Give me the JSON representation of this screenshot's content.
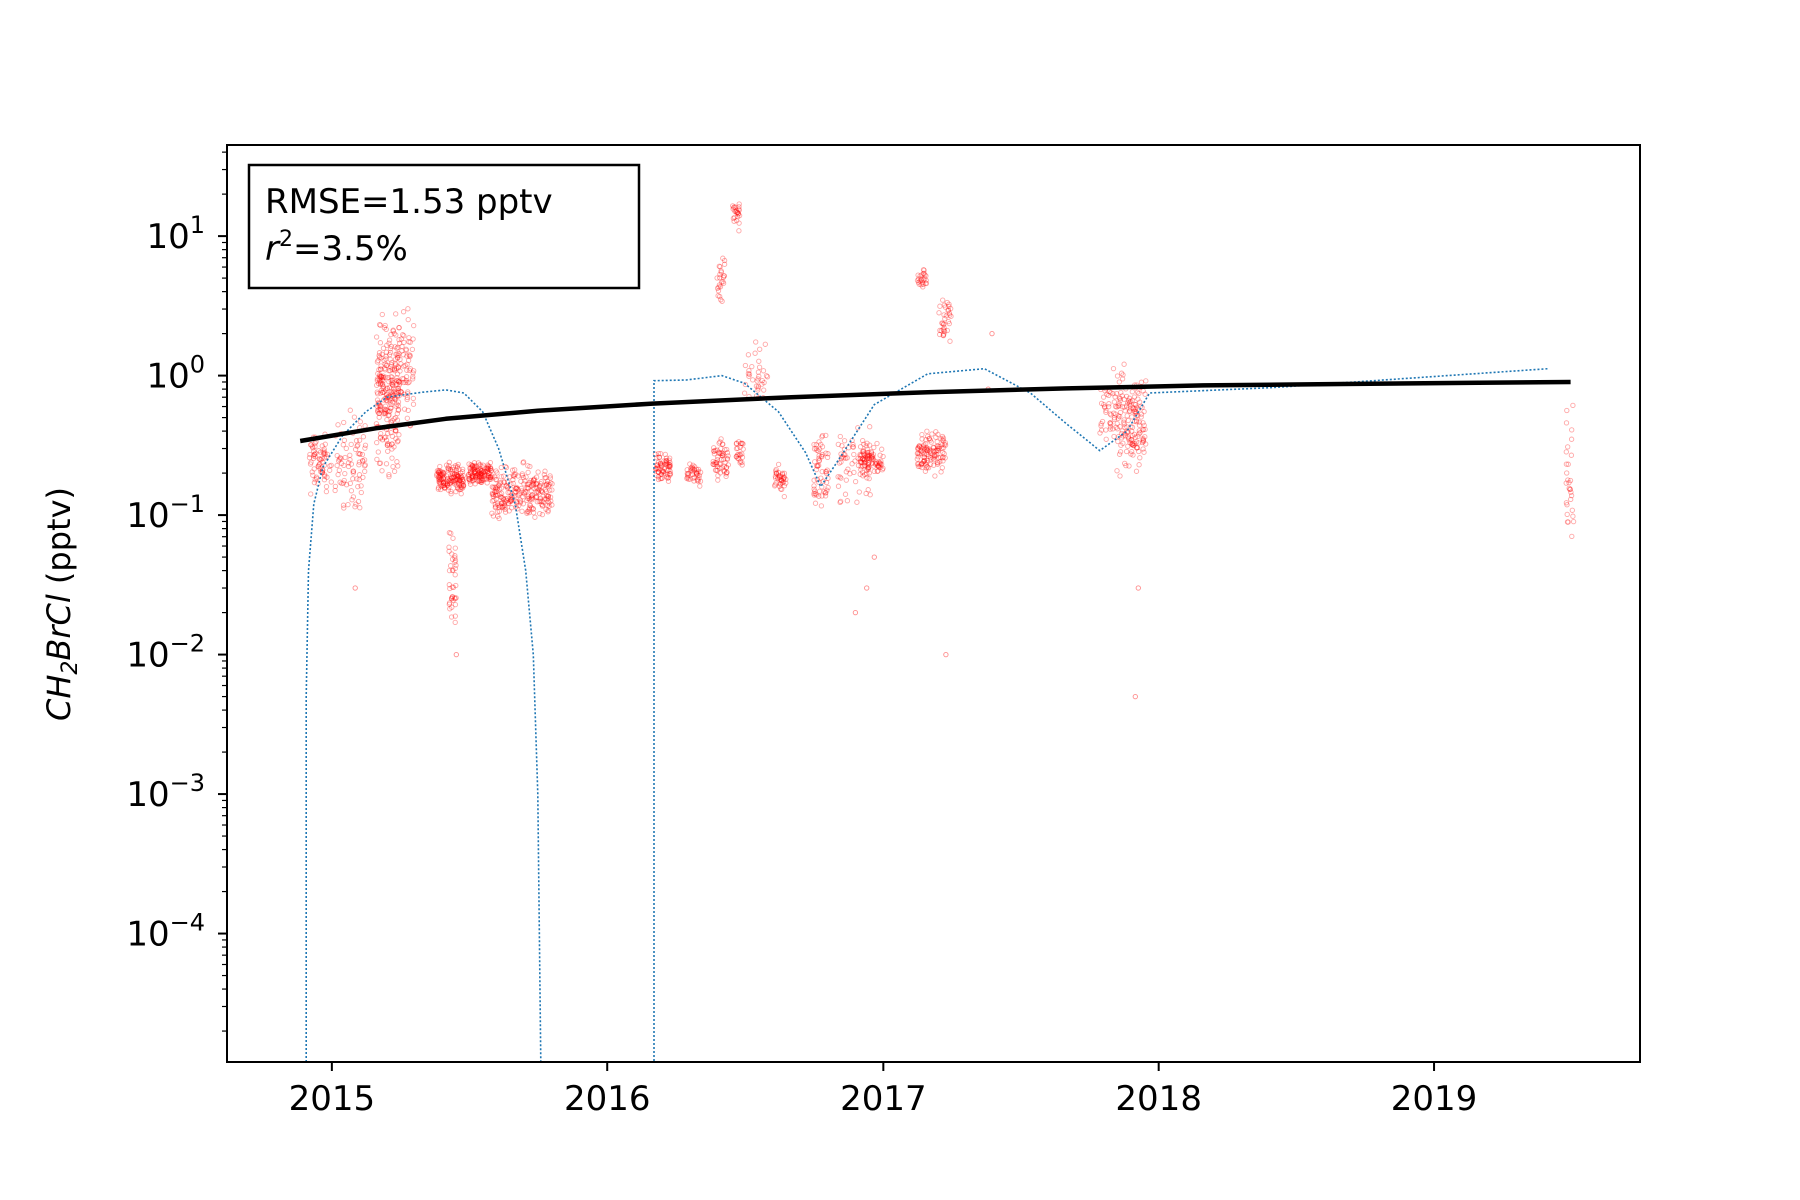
{
  "chart_data": {
    "type": "scatter",
    "yscale": "log",
    "ylabel": {
      "main": "CH",
      "sub": "2",
      "rest": "BrCl",
      "unit": " (pptv)"
    },
    "xlabel": "",
    "title": "",
    "xlim": [
      "2014-08-15",
      "2019-10-01"
    ],
    "ylim": [
      1.2e-05,
      45
    ],
    "x_ticks": [
      "2015",
      "2016",
      "2017",
      "2018",
      "2019"
    ],
    "y_ticks": [
      {
        "value": 10,
        "base": "10",
        "exp": "1"
      },
      {
        "value": 1,
        "base": "10",
        "exp": "0"
      },
      {
        "value": 0.1,
        "base": "10",
        "exp": "−1"
      },
      {
        "value": 0.01,
        "base": "10",
        "exp": "−2"
      },
      {
        "value": 0.001,
        "base": "10",
        "exp": "−3"
      },
      {
        "value": 0.0001,
        "base": "10",
        "exp": "−4"
      }
    ],
    "annotation": {
      "line1": "RMSE=1.53 pptv",
      "line2_var": "r",
      "line2_exp": "2",
      "line2_rest": "=3.5%"
    },
    "colors": {
      "observations": "#ff0000",
      "model": "#1f77b4",
      "trend": "#000000"
    },
    "series": [
      {
        "style": "black thick line",
        "points": [
          [
            "2014-11-20",
            0.34
          ],
          [
            "2015-03-01",
            0.42
          ],
          [
            "2015-06-01",
            0.49
          ],
          [
            "2015-10-01",
            0.56
          ],
          [
            "2016-03-01",
            0.63
          ],
          [
            "2016-09-01",
            0.7
          ],
          [
            "2017-03-01",
            0.76
          ],
          [
            "2017-09-01",
            0.81
          ],
          [
            "2018-03-01",
            0.85
          ],
          [
            "2018-09-01",
            0.87
          ],
          [
            "2019-03-01",
            0.89
          ],
          [
            "2019-07-01",
            0.9
          ]
        ]
      },
      {
        "style": "blue thin dotted line",
        "points": [
          [
            "2014-11-28",
            1.2e-05
          ],
          [
            "2014-11-28",
            0.005
          ],
          [
            "2014-12-01",
            0.04
          ],
          [
            "2014-12-08",
            0.12
          ],
          [
            "2014-12-20",
            0.22
          ],
          [
            "2015-01-15",
            0.37
          ],
          [
            "2015-02-15",
            0.55
          ],
          [
            "2015-03-15",
            0.7
          ],
          [
            "2015-05-01",
            0.76
          ],
          [
            "2015-06-01",
            0.79
          ],
          [
            "2015-06-25",
            0.75
          ],
          [
            "2015-07-20",
            0.55
          ],
          [
            "2015-08-10",
            0.3
          ],
          [
            "2015-09-01",
            0.12
          ],
          [
            "2015-09-15",
            0.04
          ],
          [
            "2015-09-25",
            0.01
          ],
          [
            "2015-10-01",
            0.001
          ],
          [
            "2015-10-05",
            1.2e-05
          ],
          [
            "2016-03-03",
            1.2e-05
          ],
          [
            "2016-03-03",
            0.92
          ],
          [
            "2016-04-15",
            0.93
          ],
          [
            "2016-06-01",
            1.0
          ],
          [
            "2016-07-01",
            0.88
          ],
          [
            "2016-08-15",
            0.55
          ],
          [
            "2016-09-20",
            0.28
          ],
          [
            "2016-10-10",
            0.16
          ],
          [
            "2016-11-05",
            0.26
          ],
          [
            "2016-12-20",
            0.62
          ],
          [
            "2017-03-01",
            1.03
          ],
          [
            "2017-05-15",
            1.12
          ],
          [
            "2017-07-15",
            0.75
          ],
          [
            "2017-09-01",
            0.45
          ],
          [
            "2017-10-15",
            0.29
          ],
          [
            "2017-11-20",
            0.4
          ],
          [
            "2017-12-20",
            0.75
          ],
          [
            "2018-06-01",
            0.82
          ],
          [
            "2019-06-01",
            1.12
          ]
        ]
      }
    ],
    "observation_clusters": [
      {
        "start": "2014-12-01",
        "end": "2015-01-01",
        "lo": 0.12,
        "hi": 0.45,
        "n": 70
      },
      {
        "start": "2015-01-05",
        "end": "2015-02-15",
        "lo": 0.08,
        "hi": 0.7,
        "n": 80
      },
      {
        "start": "2015-03-01",
        "end": "2015-04-01",
        "lo": 0.15,
        "hi": 4.0,
        "n": 260
      },
      {
        "start": "2015-04-01",
        "end": "2015-04-20",
        "lo": 0.3,
        "hi": 4.0,
        "n": 60
      },
      {
        "start": "2015-05-20",
        "end": "2015-06-25",
        "lo": 0.13,
        "hi": 0.25,
        "n": 150
      },
      {
        "start": "2015-06-05",
        "end": "2015-06-15",
        "lo": 0.01,
        "hi": 0.1,
        "n": 40
      },
      {
        "start": "2015-07-01",
        "end": "2015-08-01",
        "lo": 0.15,
        "hi": 0.26,
        "n": 130
      },
      {
        "start": "2015-08-01",
        "end": "2015-10-20",
        "lo": 0.08,
        "hi": 0.26,
        "n": 260
      },
      {
        "start": "2016-03-05",
        "end": "2016-03-25",
        "lo": 0.15,
        "hi": 0.35,
        "n": 70
      },
      {
        "start": "2016-04-15",
        "end": "2016-05-05",
        "lo": 0.15,
        "hi": 0.25,
        "n": 40
      },
      {
        "start": "2016-05-20",
        "end": "2016-06-10",
        "lo": 0.15,
        "hi": 0.4,
        "n": 60
      },
      {
        "start": "2016-05-25",
        "end": "2016-06-05",
        "lo": 2.5,
        "hi": 10,
        "n": 25
      },
      {
        "start": "2016-06-15",
        "end": "2016-06-25",
        "lo": 10,
        "hi": 22,
        "n": 25
      },
      {
        "start": "2016-06-20",
        "end": "2016-06-30",
        "lo": 0.2,
        "hi": 0.4,
        "n": 25
      },
      {
        "start": "2016-07-01",
        "end": "2016-08-01",
        "lo": 0.5,
        "hi": 2.0,
        "n": 35
      },
      {
        "start": "2016-08-10",
        "end": "2016-08-25",
        "lo": 0.13,
        "hi": 0.25,
        "n": 40
      },
      {
        "start": "2016-10-01",
        "end": "2016-10-20",
        "lo": 0.08,
        "hi": 0.6,
        "n": 60
      },
      {
        "start": "2016-11-01",
        "end": "2016-12-15",
        "lo": 0.1,
        "hi": 0.5,
        "n": 70
      },
      {
        "start": "2016-12-01",
        "end": "2017-01-01",
        "lo": 0.18,
        "hi": 0.35,
        "n": 80
      },
      {
        "start": "2017-02-15",
        "end": "2017-03-25",
        "lo": 0.18,
        "hi": 0.45,
        "n": 120
      },
      {
        "start": "2017-02-15",
        "end": "2017-03-01",
        "lo": 4.0,
        "hi": 6.5,
        "n": 25
      },
      {
        "start": "2017-03-15",
        "end": "2017-04-01",
        "lo": 1.3,
        "hi": 5.0,
        "n": 35
      },
      {
        "start": "2017-10-15",
        "end": "2017-10-30",
        "lo": 0.3,
        "hi": 1.1,
        "n": 30
      },
      {
        "start": "2017-11-01",
        "end": "2017-12-15",
        "lo": 0.15,
        "hi": 1.4,
        "n": 170
      },
      {
        "start": "2019-06-25",
        "end": "2019-07-05",
        "lo": 0.04,
        "hi": 0.8,
        "n": 30
      }
    ],
    "observation_outliers": [
      [
        "2015-02-01",
        0.03
      ],
      [
        "2015-06-15",
        0.01
      ],
      [
        "2016-11-25",
        0.02
      ],
      [
        "2016-12-10",
        0.03
      ],
      [
        "2017-03-25",
        0.01
      ],
      [
        "2017-12-01",
        0.005
      ],
      [
        "2017-12-05",
        0.03
      ],
      [
        "2016-12-20",
        0.05
      ],
      [
        "2017-05-20",
        0.8
      ],
      [
        "2017-05-25",
        2.0
      ]
    ]
  }
}
